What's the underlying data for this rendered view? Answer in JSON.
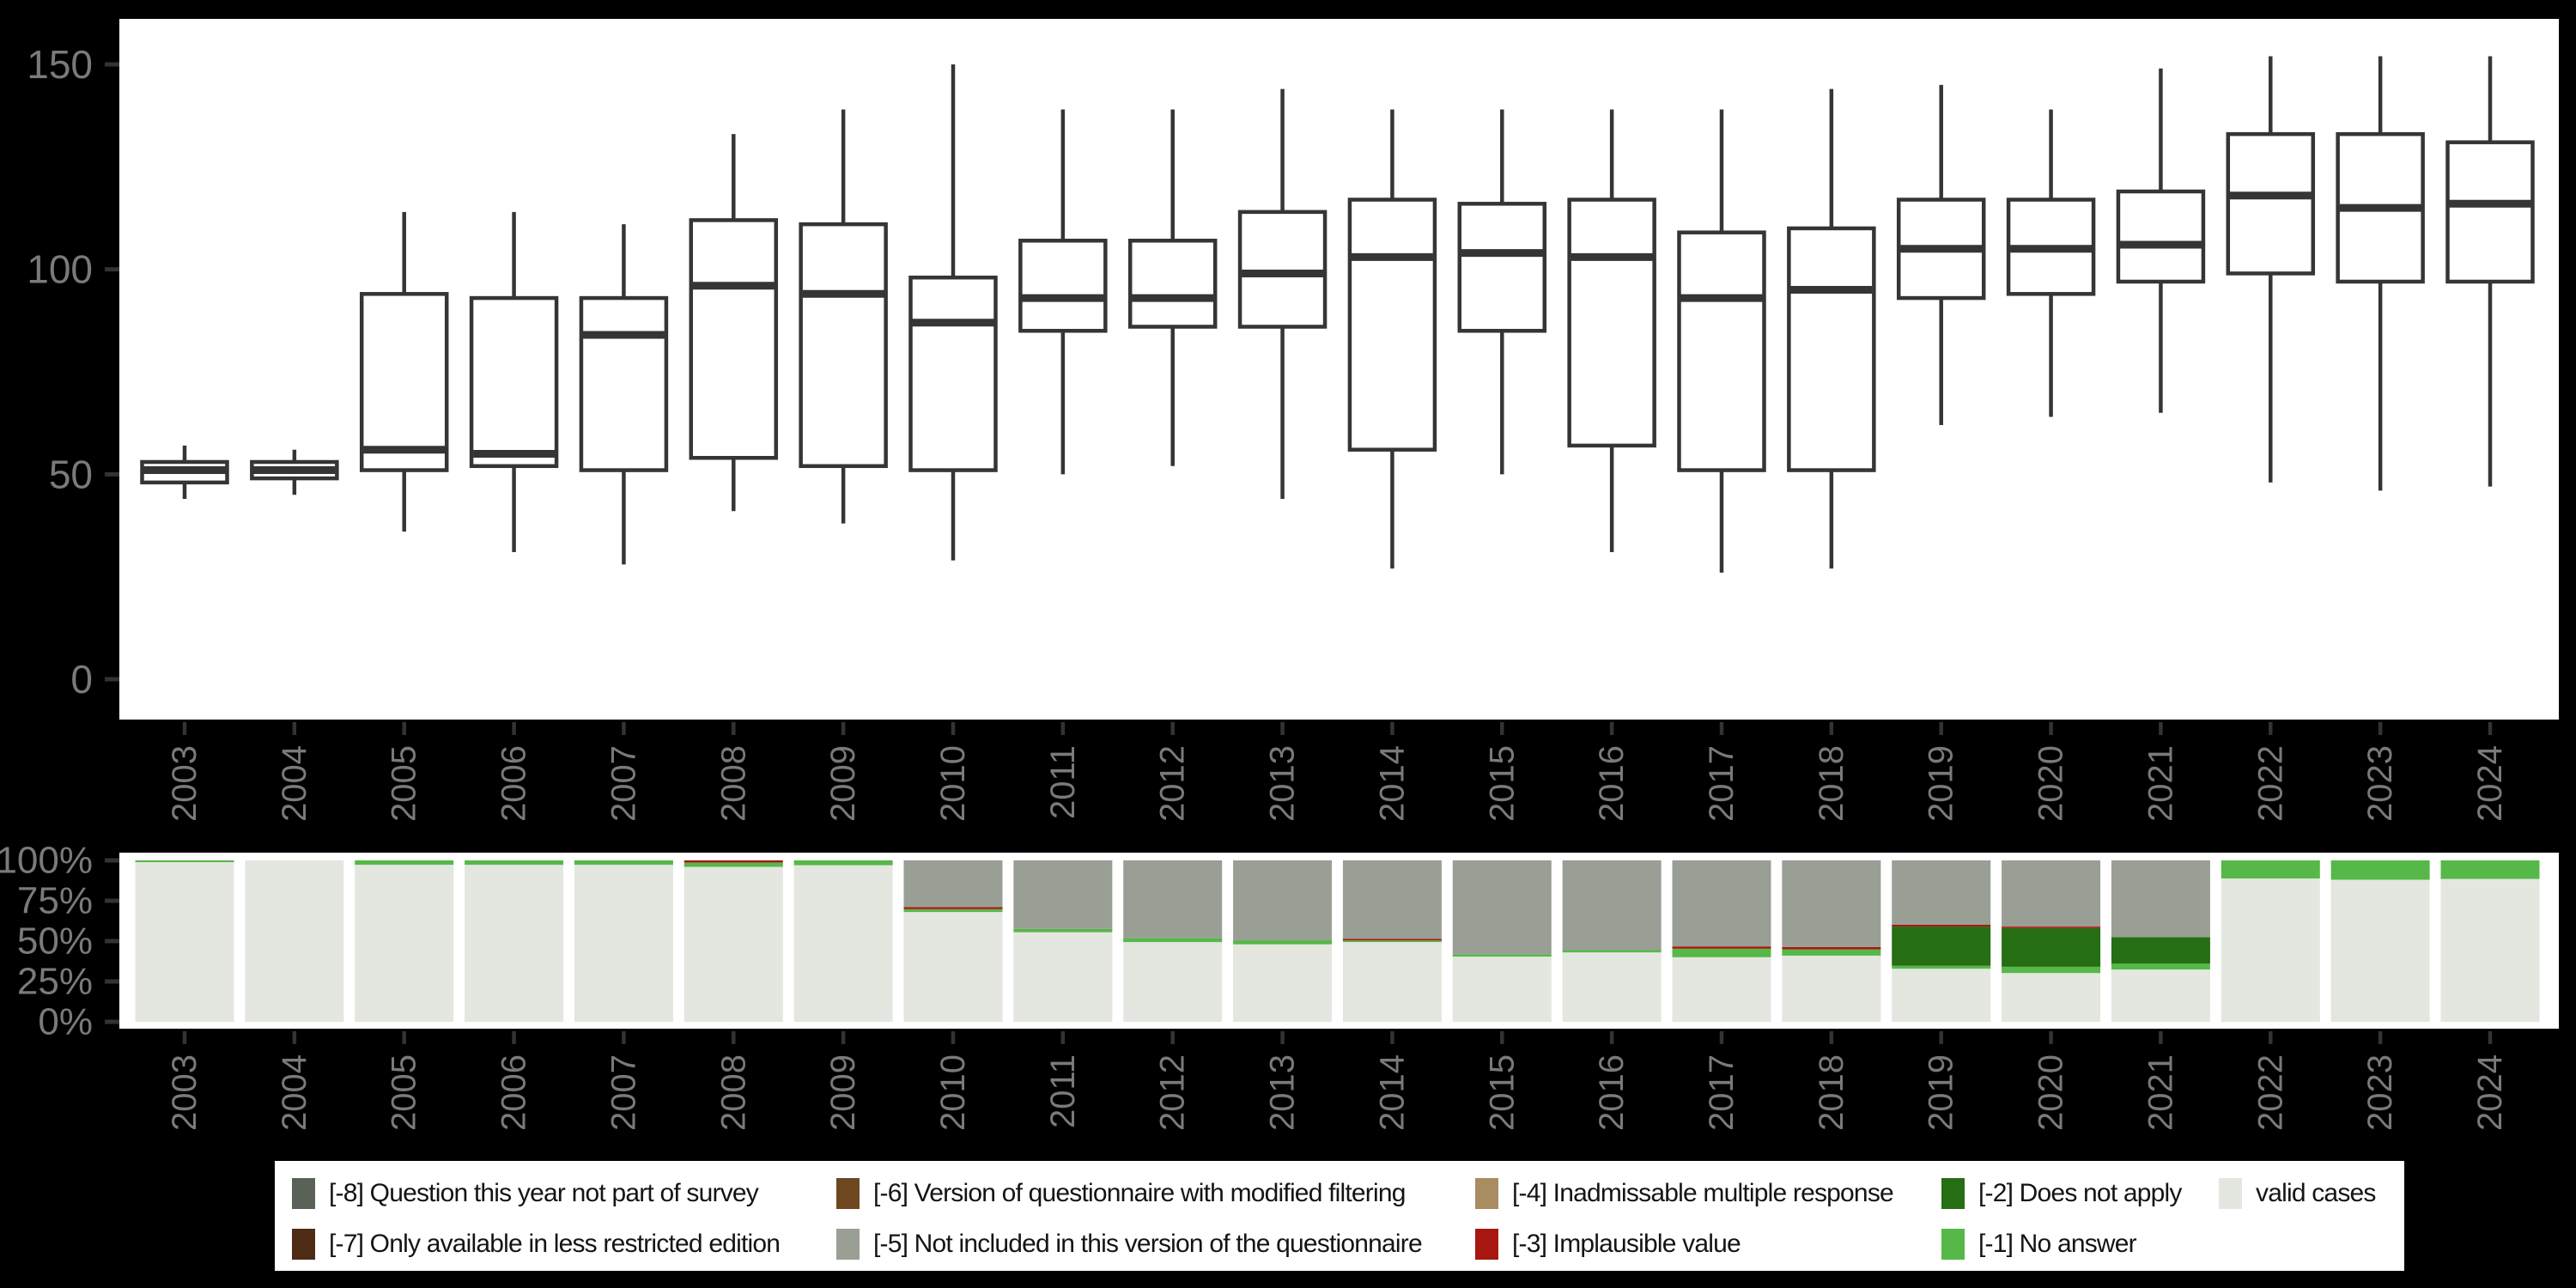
{
  "figure": {
    "background": "#000000",
    "panel_fill": "#ffffff",
    "axis_text_color": "#7a7a7a",
    "tick_color": "#333333",
    "box_stroke_color": "#353535"
  },
  "legend": {
    "background": "#ffffff",
    "items": [
      {
        "id": "m8",
        "label": "[-8] Question this year not part of survey",
        "color": "#5a6156",
        "row": 0,
        "col": 0
      },
      {
        "id": "m6",
        "label": "[-6] Version of questionnaire with modified filtering",
        "color": "#6d4720",
        "row": 0,
        "col": 1
      },
      {
        "id": "m4",
        "label": "[-4] Inadmissable multiple response",
        "color": "#a88c62",
        "row": 0,
        "col": 2
      },
      {
        "id": "m2",
        "label": "[-2] Does not apply",
        "color": "#256e14",
        "row": 0,
        "col": 3
      },
      {
        "id": "valid",
        "label": "valid cases",
        "color": "#e3e7e0",
        "row": 0,
        "col": 4
      },
      {
        "id": "m7",
        "label": "[-7] Only available in less restricted edition",
        "color": "#4e2c15",
        "row": 1,
        "col": 0
      },
      {
        "id": "m5",
        "label": "[-5] Not included in this version of the questionnaire",
        "color": "#9a9f95",
        "row": 1,
        "col": 1
      },
      {
        "id": "m3",
        "label": "[-3] Implausible value",
        "color": "#a81710",
        "row": 1,
        "col": 2
      },
      {
        "id": "m1",
        "label": "[-1] No answer",
        "color": "#56b848",
        "row": 1,
        "col": 3
      }
    ]
  },
  "chart_data": [
    {
      "type": "boxplot",
      "title": "",
      "xlabel": "",
      "ylabel": "",
      "ylim": [
        0,
        155
      ],
      "yticks": [
        0,
        50,
        100,
        150
      ],
      "grid": false,
      "categories": [
        "2003",
        "2004",
        "2005",
        "2006",
        "2007",
        "2008",
        "2009",
        "2010",
        "2011",
        "2012",
        "2013",
        "2014",
        "2015",
        "2016",
        "2017",
        "2018",
        "2019",
        "2020",
        "2021",
        "2022",
        "2023",
        "2024"
      ],
      "low": [
        44,
        45,
        36,
        31,
        28,
        41,
        38,
        29,
        50,
        52,
        44,
        27,
        50,
        31,
        26,
        27,
        62,
        64,
        65,
        48,
        46,
        47
      ],
      "q1": [
        48,
        49,
        51,
        52,
        51,
        54,
        52,
        51,
        85,
        86,
        86,
        56,
        85,
        57,
        51,
        51,
        93,
        94,
        97,
        99,
        97,
        97
      ],
      "median": [
        51,
        51,
        56,
        55,
        84,
        96,
        94,
        87,
        93,
        93,
        99,
        103,
        104,
        103,
        93,
        95,
        105,
        105,
        106,
        118,
        115,
        116
      ],
      "q3": [
        53,
        53,
        94,
        93,
        93,
        112,
        111,
        98,
        107,
        107,
        114,
        117,
        116,
        117,
        109,
        110,
        117,
        117,
        119,
        133,
        133,
        131
      ],
      "high": [
        57,
        56,
        114,
        114,
        111,
        133,
        139,
        150,
        139,
        139,
        144,
        139,
        139,
        139,
        139,
        144,
        145,
        139,
        149,
        152,
        152,
        152
      ]
    },
    {
      "type": "bar",
      "stacked": true,
      "units": "percent",
      "title": "",
      "xlabel": "",
      "ylabel": "",
      "ylim": [
        0,
        100
      ],
      "yticks": [
        "0%",
        "25%",
        "50%",
        "75%",
        "100%"
      ],
      "legend_position": "bottom",
      "categories": [
        "2003",
        "2004",
        "2005",
        "2006",
        "2007",
        "2008",
        "2009",
        "2010",
        "2011",
        "2012",
        "2013",
        "2014",
        "2015",
        "2016",
        "2017",
        "2018",
        "2019",
        "2020",
        "2021",
        "2022",
        "2023",
        "2024"
      ],
      "series": [
        {
          "id": "valid",
          "name": "valid cases",
          "color": "#e3e7e0",
          "values": [
            98.9,
            100,
            97.3,
            97.3,
            97.3,
            96.0,
            97.0,
            68.0,
            55.5,
            49.4,
            48.0,
            49.4,
            40.4,
            43.0,
            40.0,
            41.0,
            32.9,
            30.2,
            32.4,
            88.8,
            88.0,
            88.5
          ]
        },
        {
          "id": "m1",
          "name": "[-1] No answer",
          "color": "#56b848",
          "values": [
            1.1,
            0,
            2.7,
            2.7,
            2.7,
            2.7,
            3.0,
            1.8,
            2.0,
            2.4,
            2.5,
            1.0,
            1.4,
            1.4,
            5.3,
            3.9,
            1.8,
            3.9,
            3.6,
            11.2,
            12.0,
            11.5
          ]
        },
        {
          "id": "m2",
          "name": "[-2] Does not apply",
          "color": "#256e14",
          "values": [
            0,
            0,
            0,
            0,
            0,
            0,
            0,
            0,
            0,
            0,
            0,
            0,
            0,
            0,
            0,
            0,
            24.3,
            24.0,
            16.5,
            0,
            0,
            0
          ]
        },
        {
          "id": "m3",
          "name": "[-3] Implausible value",
          "color": "#a81710",
          "values": [
            0,
            0,
            0,
            0,
            0,
            1.3,
            0,
            1.2,
            0,
            0,
            0,
            1.0,
            0,
            0,
            1.4,
            1.4,
            1.1,
            0.9,
            0,
            0,
            0,
            0
          ]
        },
        {
          "id": "m5",
          "name": "[-5] Not included in this version of the questionnaire",
          "color": "#9a9f95",
          "values": [
            0,
            0,
            0,
            0,
            0,
            0,
            0,
            29.0,
            42.5,
            48.2,
            49.5,
            48.6,
            58.2,
            55.6,
            53.3,
            53.7,
            39.9,
            41.0,
            47.5,
            0,
            0,
            0
          ]
        }
      ]
    }
  ]
}
